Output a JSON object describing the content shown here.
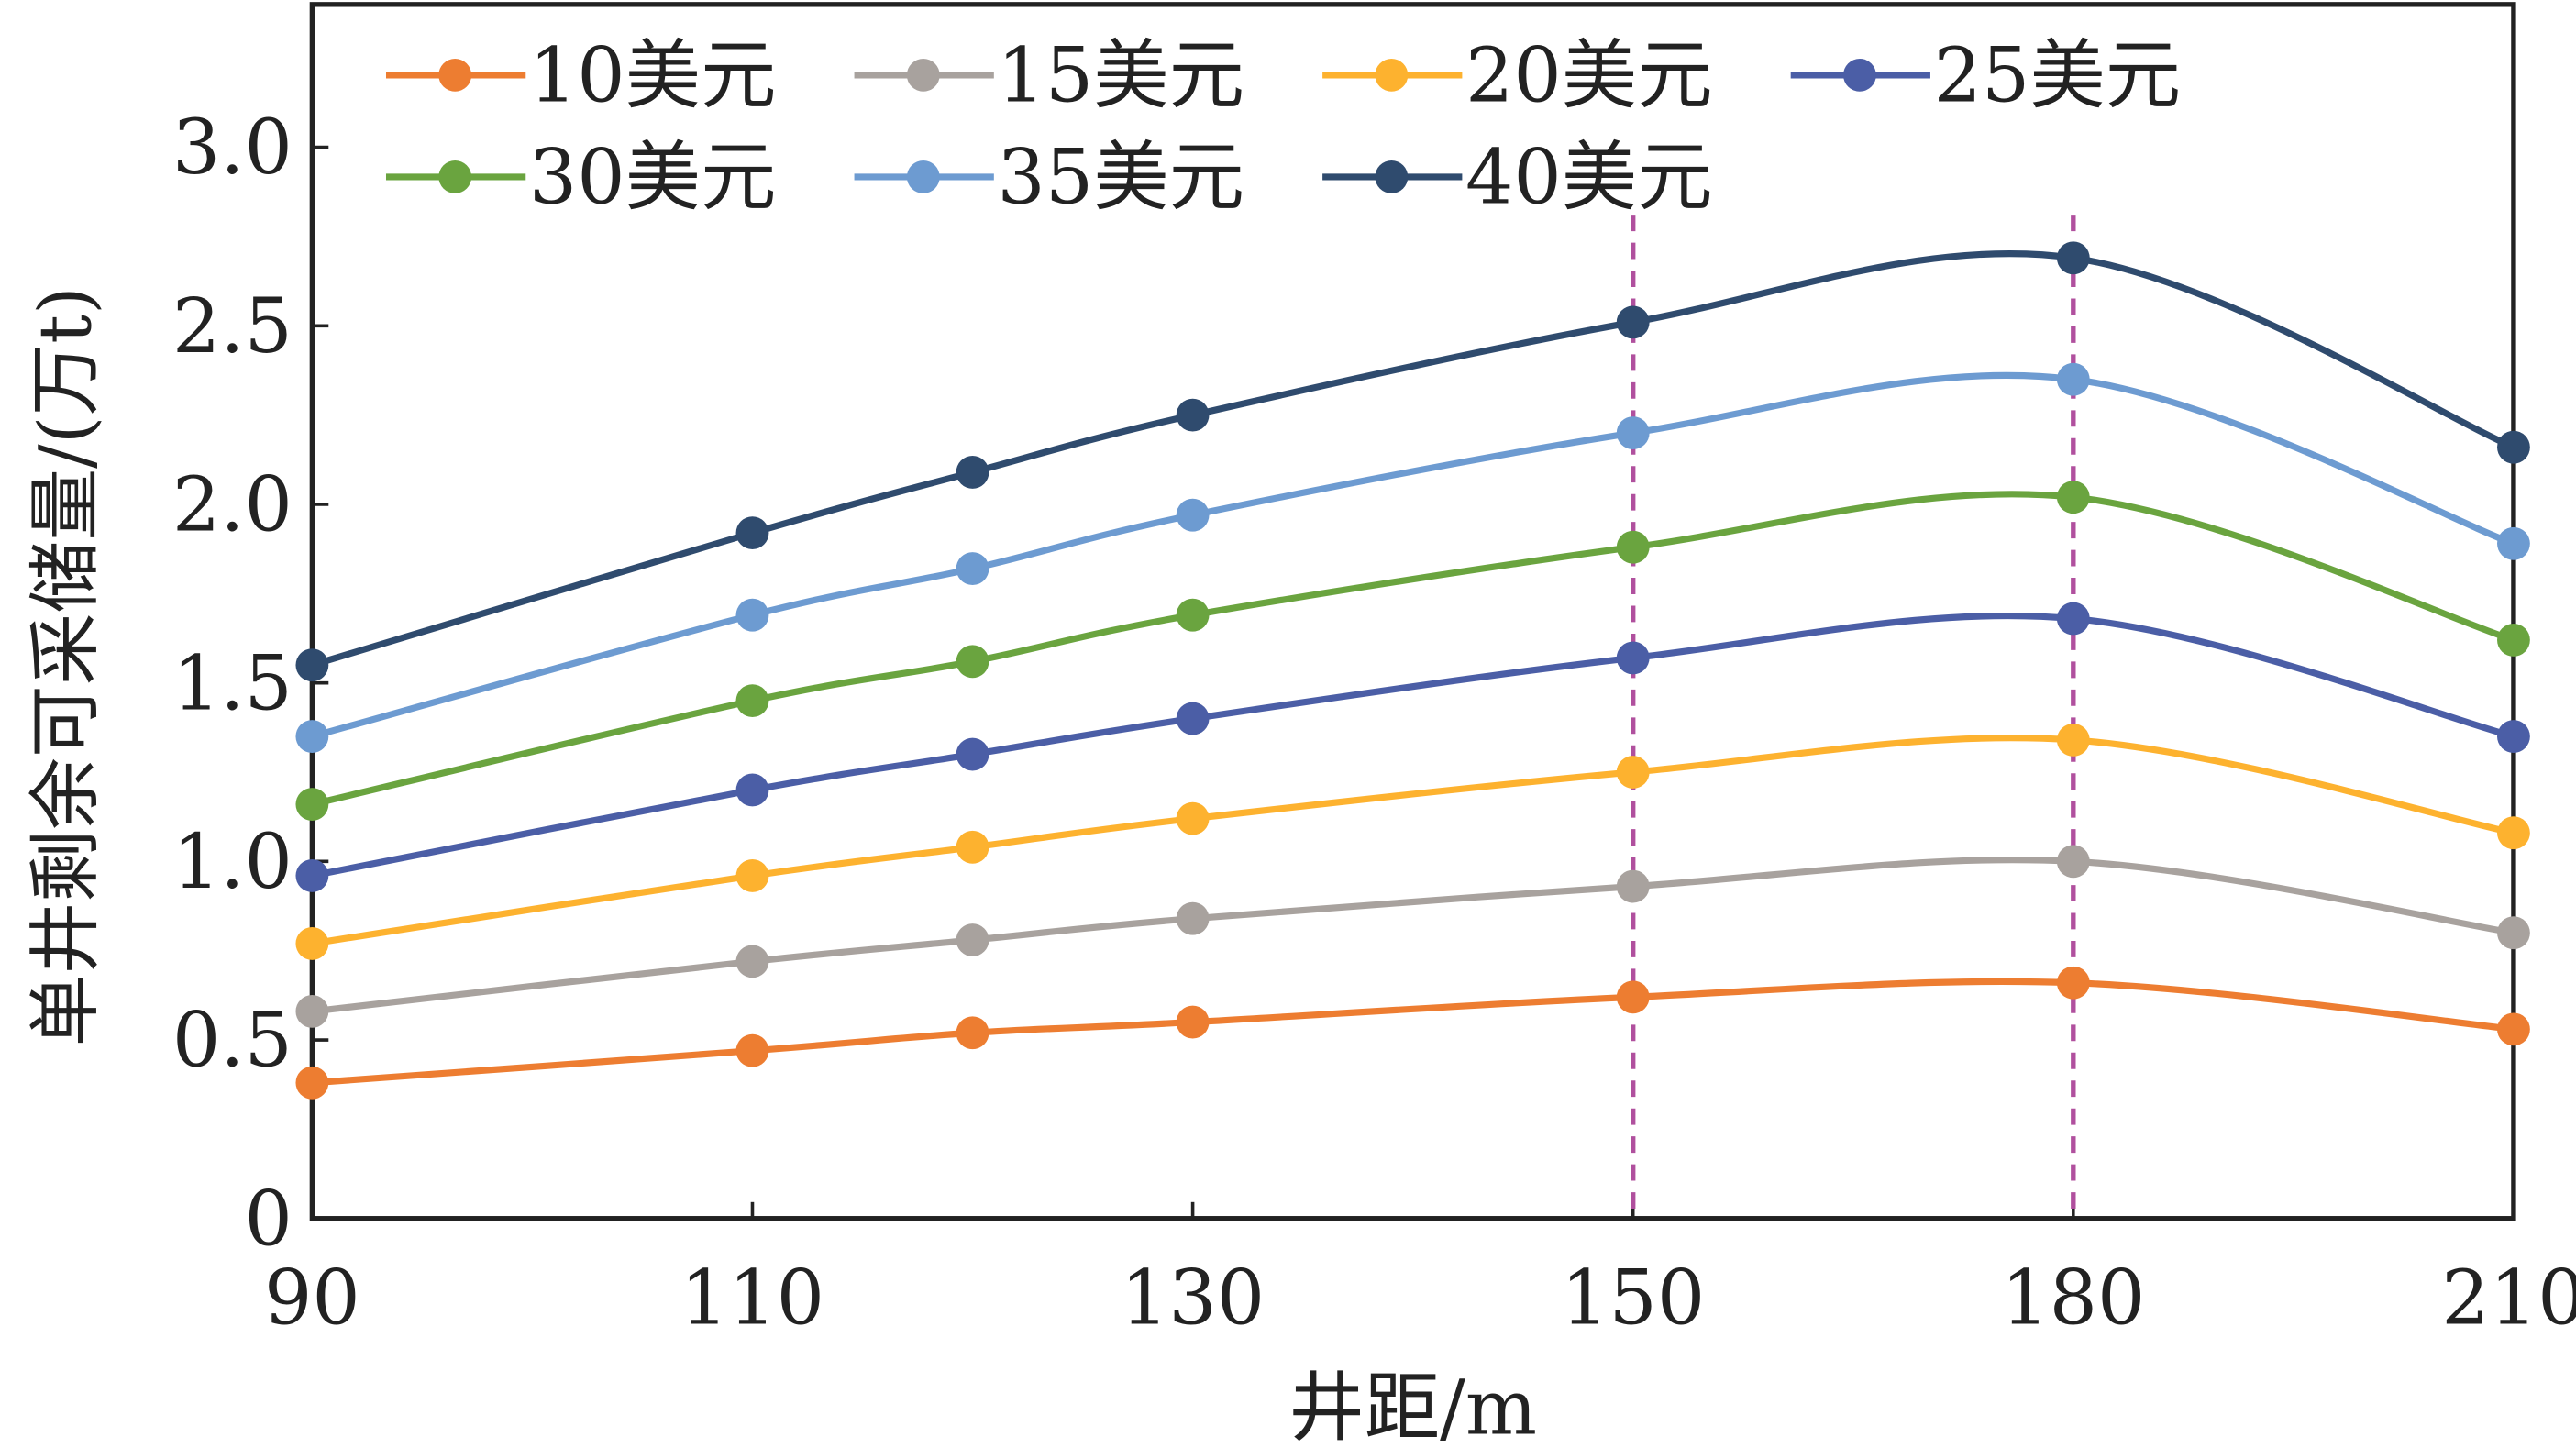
{
  "chart_data": {
    "type": "line",
    "xlabel": "井距/m",
    "ylabel": "单井剩余可采储量/(万t)",
    "x": [
      90,
      110,
      120,
      130,
      150,
      180,
      210
    ],
    "xticks": [
      90,
      110,
      130,
      150,
      180,
      210
    ],
    "yticks": [
      "0",
      "0.5",
      "1.0",
      "1.5",
      "2.0",
      "2.5",
      "3.0"
    ],
    "ylim": [
      0,
      3.4
    ],
    "grid": false,
    "legend_placement": "top",
    "reference_lines_x": [
      150,
      180
    ],
    "reference_line_color": "#B0509E",
    "series": [
      {
        "name": "10美元",
        "color": "#ED7D31",
        "values": [
          0.38,
          0.47,
          0.52,
          0.55,
          0.62,
          0.66,
          0.53
        ]
      },
      {
        "name": "15美元",
        "color": "#A8A29E",
        "values": [
          0.58,
          0.72,
          0.78,
          0.84,
          0.93,
          1.0,
          0.8
        ]
      },
      {
        "name": "20美元",
        "color": "#FDB22F",
        "values": [
          0.77,
          0.96,
          1.04,
          1.12,
          1.25,
          1.34,
          1.08
        ]
      },
      {
        "name": "25美元",
        "color": "#4B5EA6",
        "values": [
          0.96,
          1.2,
          1.3,
          1.4,
          1.57,
          1.68,
          1.35
        ]
      },
      {
        "name": "30美元",
        "color": "#6AA43F",
        "values": [
          1.16,
          1.45,
          1.56,
          1.69,
          1.88,
          2.02,
          1.62
        ]
      },
      {
        "name": "35美元",
        "color": "#6D9BD1",
        "values": [
          1.35,
          1.69,
          1.82,
          1.97,
          2.2,
          2.35,
          1.89
        ]
      },
      {
        "name": "40美元",
        "color": "#2F4B6E",
        "values": [
          1.55,
          1.92,
          2.09,
          2.25,
          2.51,
          2.69,
          2.16
        ]
      }
    ]
  }
}
